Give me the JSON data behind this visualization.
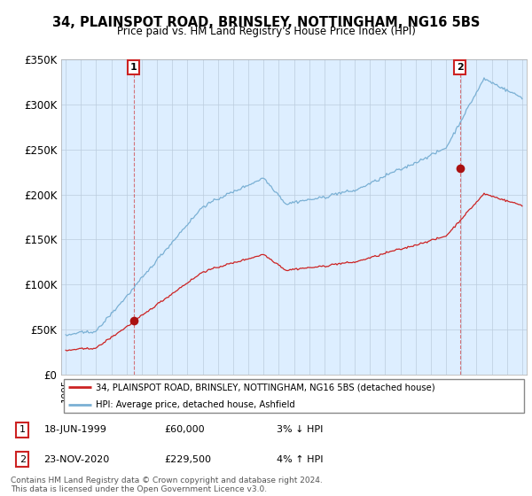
{
  "title": "34, PLAINSPOT ROAD, BRINSLEY, NOTTINGHAM, NG16 5BS",
  "subtitle": "Price paid vs. HM Land Registry's House Price Index (HPI)",
  "ylim": [
    0,
    350000
  ],
  "yticks": [
    0,
    50000,
    100000,
    150000,
    200000,
    250000,
    300000,
    350000
  ],
  "ytick_labels": [
    "£0",
    "£50K",
    "£100K",
    "£150K",
    "£200K",
    "£250K",
    "£300K",
    "£350K"
  ],
  "sale1_date": 1999.46,
  "sale1_price": 60000,
  "sale2_date": 2020.9,
  "sale2_price": 229500,
  "hpi_line_color": "#7ab0d4",
  "price_line_color": "#cc2222",
  "sale_marker_color": "#aa1111",
  "annotation_box_color": "#cc2222",
  "background_color": "#ddeeff",
  "plot_bg_color": "#ddeeff",
  "grid_color": "#bbccdd",
  "legend_label_price": "34, PLAINSPOT ROAD, BRINSLEY, NOTTINGHAM, NG16 5BS (detached house)",
  "legend_label_hpi": "HPI: Average price, detached house, Ashfield",
  "footer_text": "Contains HM Land Registry data © Crown copyright and database right 2024.\nThis data is licensed under the Open Government Licence v3.0.",
  "table_rows": [
    [
      "1",
      "18-JUN-1999",
      "£60,000",
      "3% ↓ HPI"
    ],
    [
      "2",
      "23-NOV-2020",
      "£229,500",
      "4% ↑ HPI"
    ]
  ],
  "xstart": 1995,
  "xend": 2025
}
